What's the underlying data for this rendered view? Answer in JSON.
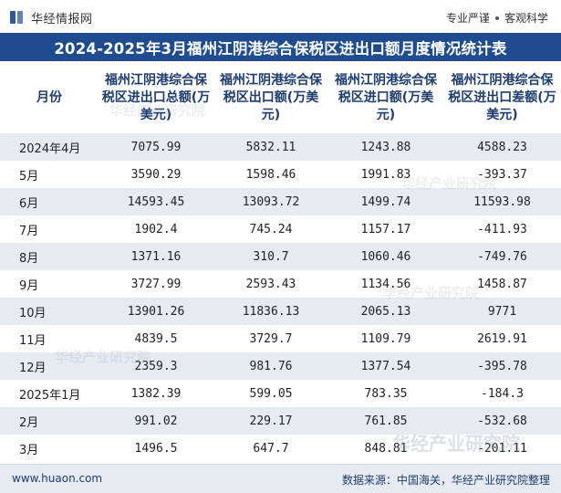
{
  "brand": {
    "name": "华经情报网",
    "slogan_1": "专业严谨",
    "slogan_2": "客观科学"
  },
  "title": "2024-2025年3月福州江阴港综合保税区进出口额月度情况统计表",
  "table": {
    "headers": [
      "月份",
      "福州江阴港综合保税区进出口总额(万美元)",
      "福州江阴港综合保税区出口额(万美元)",
      "福州江阴港综合保税区进口额(万美元)",
      "福州江阴港综合保税区进出口差额(万美元)"
    ],
    "rows": [
      [
        "2024年4月",
        "7075.99",
        "5832.11",
        "1243.88",
        "4588.23"
      ],
      [
        "5月",
        "3590.29",
        "1598.46",
        "1991.83",
        "-393.37"
      ],
      [
        "6月",
        "14593.45",
        "13093.72",
        "1499.74",
        "11593.98"
      ],
      [
        "7月",
        "1902.4",
        "745.24",
        "1157.17",
        "-411.93"
      ],
      [
        "8月",
        "1371.16",
        "310.7",
        "1060.46",
        "-749.76"
      ],
      [
        "9月",
        "3727.99",
        "2593.43",
        "1134.56",
        "1458.87"
      ],
      [
        "10月",
        "13901.26",
        "11836.13",
        "2065.13",
        "9771"
      ],
      [
        "11月",
        "4839.5",
        "3729.7",
        "1109.79",
        "2619.91"
      ],
      [
        "12月",
        "2359.3",
        "981.76",
        "1377.54",
        "-395.78"
      ],
      [
        "2025年1月",
        "1382.39",
        "599.05",
        "783.35",
        "-184.3"
      ],
      [
        "2月",
        "991.02",
        "229.17",
        "761.85",
        "-532.68"
      ],
      [
        "3月",
        "1496.5",
        "647.7",
        "848.81",
        "-201.11"
      ]
    ]
  },
  "footer": {
    "website": "www.huaon.com",
    "source": "数据来源：中国海关，华经产业研究院整理"
  },
  "watermark_text": "华经产业研究院",
  "colors": {
    "title_bg": "#1e4c8f",
    "header_text": "#1e3c6e",
    "stripe": "#e6ebf2"
  }
}
